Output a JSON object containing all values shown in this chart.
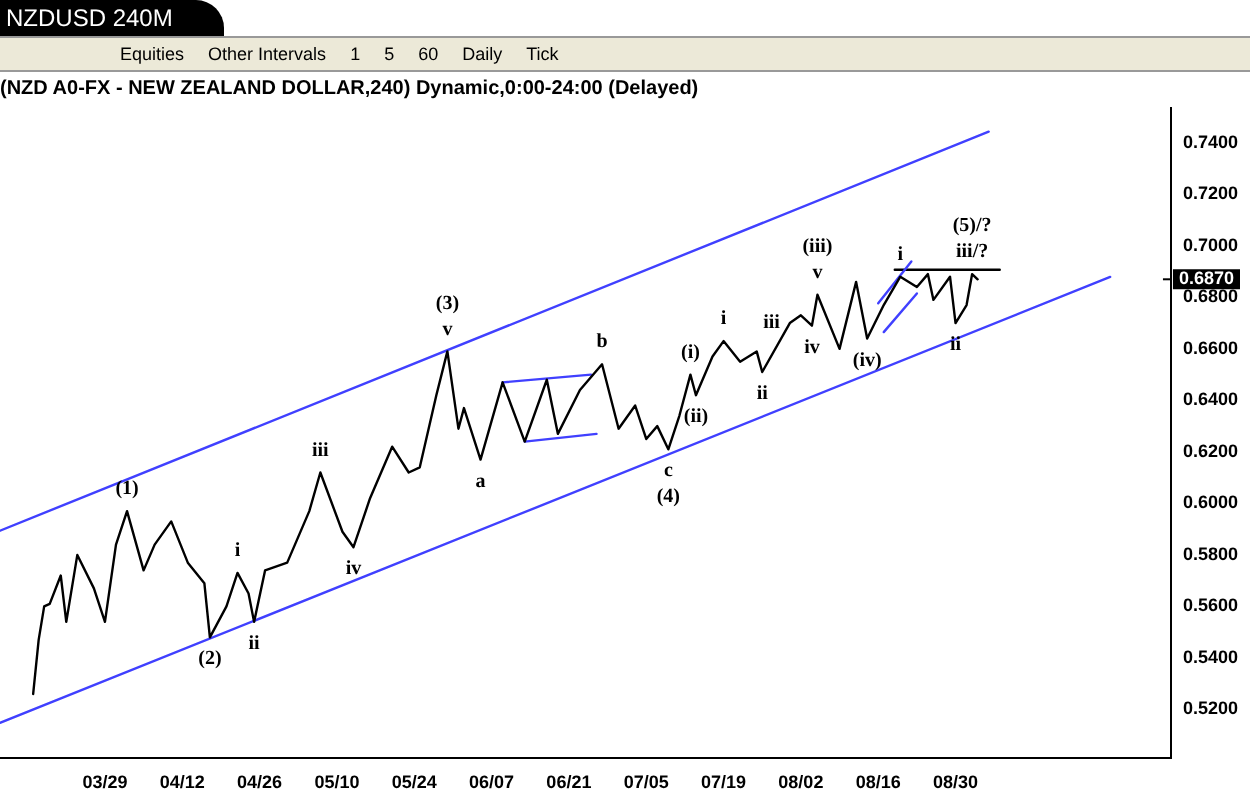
{
  "chart_data": {
    "type": "line",
    "title": "NZDUSD 240M",
    "subtitle": "(NZD A0-FX - NEW ZEALAND DOLLAR,240) Dynamic,0:00-24:00 (Delayed)",
    "xlim": [
      "--03-10",
      "--10-08"
    ],
    "ylim": [
      0.501,
      0.7535
    ],
    "xticks": [
      {
        "value": "--03-29",
        "label": "03/29"
      },
      {
        "value": "--04-12",
        "label": "04/12"
      },
      {
        "value": "--04-26",
        "label": "04/26"
      },
      {
        "value": "--05-10",
        "label": "05/10"
      },
      {
        "value": "--05-24",
        "label": "05/24"
      },
      {
        "value": "--06-07",
        "label": "06/07"
      },
      {
        "value": "--06-21",
        "label": "06/21"
      },
      {
        "value": "--07-05",
        "label": "07/05"
      },
      {
        "value": "--07-19",
        "label": "07/19"
      },
      {
        "value": "--08-02",
        "label": "08/02"
      },
      {
        "value": "--08-16",
        "label": "08/16"
      },
      {
        "value": "--08-30",
        "label": "08/30"
      }
    ],
    "yticks": [
      {
        "value": 0.52,
        "label": "0.5200"
      },
      {
        "value": 0.54,
        "label": "0.5400"
      },
      {
        "value": 0.56,
        "label": "0.5600"
      },
      {
        "value": 0.58,
        "label": "0.5800"
      },
      {
        "value": 0.6,
        "label": "0.6000"
      },
      {
        "value": 0.62,
        "label": "0.6200"
      },
      {
        "value": 0.64,
        "label": "0.6400"
      },
      {
        "value": 0.66,
        "label": "0.6600"
      },
      {
        "value": 0.68,
        "label": "0.6800"
      },
      {
        "value": 0.7,
        "label": "0.7000"
      },
      {
        "value": 0.72,
        "label": "0.7200"
      },
      {
        "value": 0.74,
        "label": "0.7400"
      }
    ],
    "grid": false,
    "legend": false,
    "marker": "none",
    "line_style": "solid",
    "series": [
      {
        "color": "#000000",
        "x": [
          "--03-16",
          "--03-17",
          "--03-18",
          "--03-19",
          "--03-21",
          "--03-22",
          "--03-24",
          "--03-27",
          "--03-29",
          "--03-31",
          "--04-02",
          "--04-05",
          "--04-07",
          "--04-10",
          "--04-13",
          "--04-16",
          "--04-17",
          "--04-20",
          "--04-22",
          "--04-24",
          "--04-25",
          "--04-27",
          "--05-01",
          "--05-05",
          "--05-07",
          "--05-11",
          "--05-13",
          "--05-16",
          "--05-20",
          "--05-23",
          "--05-25",
          "--05-28",
          "--05-30",
          "--06-01",
          "--06-02",
          "--06-05",
          "--06-09",
          "--06-13",
          "--06-17",
          "--06-19",
          "--06-23",
          "--06-27",
          "--06-30",
          "--07-03",
          "--07-05",
          "--07-07",
          "--07-09",
          "--07-11",
          "--07-13",
          "--07-14",
          "--07-17",
          "--07-19",
          "--07-22",
          "--07-25",
          "--07-26",
          "--07-31",
          "--08-02",
          "--08-04",
          "--08-05",
          "--08-09",
          "--08-12",
          "--08-14",
          "--08-17",
          "--08-20",
          "--08-23",
          "--08-25",
          "--08-26",
          "--08-29",
          "--08-30",
          "--09-01",
          "--09-02",
          "--09-03"
        ],
        "values": [
          0.526,
          0.547,
          0.56,
          0.561,
          0.572,
          0.554,
          0.58,
          0.567,
          0.554,
          0.584,
          0.597,
          0.574,
          0.584,
          0.593,
          0.577,
          0.569,
          0.548,
          0.56,
          0.573,
          0.565,
          0.554,
          0.574,
          0.577,
          0.597,
          0.612,
          0.589,
          0.583,
          0.602,
          0.622,
          0.612,
          0.614,
          0.642,
          0.659,
          0.629,
          0.637,
          0.617,
          0.647,
          0.624,
          0.648,
          0.627,
          0.644,
          0.654,
          0.629,
          0.638,
          0.625,
          0.63,
          0.621,
          0.634,
          0.65,
          0.642,
          0.657,
          0.663,
          0.655,
          0.659,
          0.651,
          0.67,
          0.673,
          0.669,
          0.681,
          0.66,
          0.686,
          0.664,
          0.677,
          0.688,
          0.684,
          0.689,
          0.679,
          0.688,
          0.67,
          0.677,
          0.689,
          0.687
        ]
      },
      {
        "type": "line",
        "color": "#4040ff",
        "x": [
          "--03-10",
          "--09-05"
        ],
        "values": [
          0.5894,
          0.7443
        ]
      },
      {
        "type": "line",
        "color": "#4040ff",
        "x": [
          "--03-10",
          "--09-27"
        ],
        "values": [
          0.5148,
          0.6879
        ]
      },
      {
        "type": "line",
        "color": "#4040ff",
        "x": [
          "--06-09",
          "--06-25"
        ],
        "values": [
          0.647,
          0.65
        ]
      },
      {
        "type": "line",
        "color": "#4040ff",
        "x": [
          "--06-13",
          "--06-26"
        ],
        "values": [
          0.624,
          0.627
        ]
      },
      {
        "type": "line",
        "color": "#4040ff",
        "x": [
          "--08-16",
          "--08-22"
        ],
        "values": [
          0.6777,
          0.6939
        ]
      },
      {
        "type": "line",
        "color": "#4040ff",
        "x": [
          "--08-17",
          "--08-23"
        ],
        "values": [
          0.6665,
          0.6815
        ]
      },
      {
        "type": "line",
        "color": "#000000",
        "x": [
          "--08-19",
          "--09-07"
        ],
        "values": [
          0.6907,
          0.6907
        ]
      }
    ],
    "annotations": [
      "Equities",
      "Other Intervals",
      "1",
      "5",
      "60",
      "Daily",
      "Tick",
      {
        "text": "(1)",
        "x": "--04-02",
        "y": 0.597
      },
      {
        "text": "(2)",
        "x": "--04-17",
        "y": 0.548
      },
      {
        "text": "i",
        "x": "--04-22",
        "y": 0.573
      },
      {
        "text": "ii",
        "x": "--04-25",
        "y": 0.554
      },
      {
        "text": "iii",
        "x": "--05-07",
        "y": 0.612
      },
      {
        "text": "iv",
        "x": "--05-13",
        "y": 0.583
      },
      {
        "text": "v",
        "x": "--05-30",
        "y": 0.659
      },
      {
        "text": "(3)",
        "x": "--05-30",
        "y": 0.659
      },
      {
        "text": "a",
        "x": "--06-05",
        "y": 0.617
      },
      {
        "text": "b",
        "x": "--06-27",
        "y": 0.654
      },
      {
        "text": "c",
        "x": "--07-09",
        "y": 0.621
      },
      {
        "text": "(4)",
        "x": "--07-09",
        "y": 0.621
      },
      {
        "text": "(i)",
        "x": "--07-13",
        "y": 0.65
      },
      {
        "text": "(ii)",
        "x": "--07-14",
        "y": 0.642
      },
      {
        "text": "i",
        "x": "--07-19",
        "y": 0.663
      },
      {
        "text": "ii",
        "x": "--07-26",
        "y": 0.651
      },
      {
        "text": "iii",
        "x": "--07-31",
        "y": 0.67
      },
      {
        "text": "v",
        "x": "--08-05",
        "y": 0.681
      },
      {
        "text": "(iii)",
        "x": "--08-05",
        "y": 0.681
      },
      {
        "text": "iv",
        "x": "--08-04",
        "y": 0.669
      },
      {
        "text": "(iv)",
        "x": "--08-14",
        "y": 0.664
      },
      {
        "text": "i",
        "x": "--08-20",
        "y": 0.688
      },
      {
        "text": "ii",
        "x": "--08-30",
        "y": 0.67
      },
      {
        "text": "iii/?",
        "x": "--09-02",
        "y": 0.689
      },
      {
        "text": "(5)/?",
        "x": "--09-02",
        "y": 0.689
      }
    ],
    "ref_lines": [
      {
        "axis": "y",
        "value": 0.687,
        "label": "0.6870",
        "color": "#000000"
      }
    ]
  }
}
